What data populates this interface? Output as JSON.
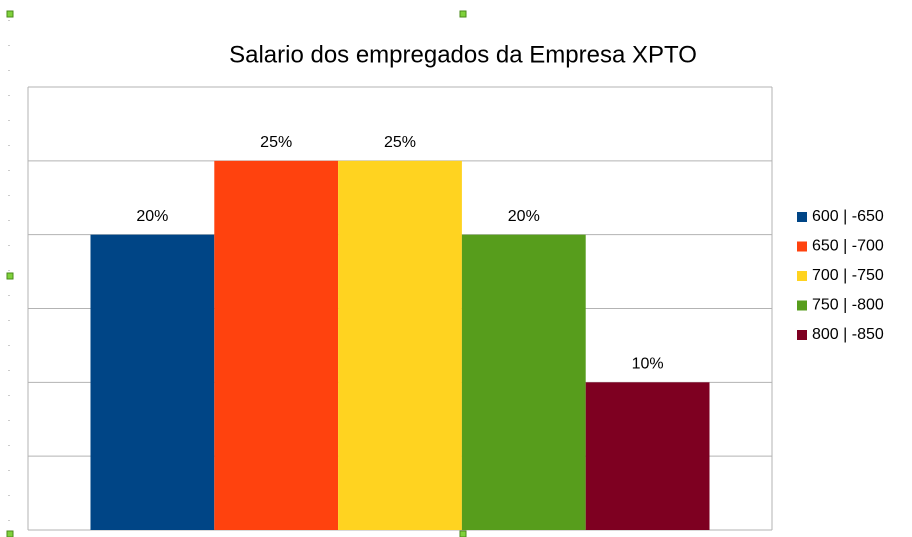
{
  "chart_data": {
    "type": "bar",
    "title": "Salario dos empregados da Empresa XPTO",
    "series": [
      {
        "name": "600 | -650",
        "color": "#004586",
        "values": [
          20
        ],
        "value_labels": [
          "20%"
        ]
      },
      {
        "name": "650 | -700",
        "color": "#ff420e",
        "values": [
          25
        ],
        "value_labels": [
          "25%"
        ]
      },
      {
        "name": "700 | -750",
        "color": "#ffd320",
        "values": [
          25
        ],
        "value_labels": [
          "25%"
        ]
      },
      {
        "name": "750 | -800",
        "color": "#579d1c",
        "values": [
          20
        ],
        "value_labels": [
          "20%"
        ]
      },
      {
        "name": "800 | -850",
        "color": "#7e0021",
        "values": [
          10
        ],
        "value_labels": [
          "10%"
        ]
      }
    ],
    "ylim": [
      0,
      30
    ],
    "yticks": [
      0,
      5,
      10,
      15,
      20,
      25,
      30
    ],
    "grid": true,
    "legend": "right"
  }
}
